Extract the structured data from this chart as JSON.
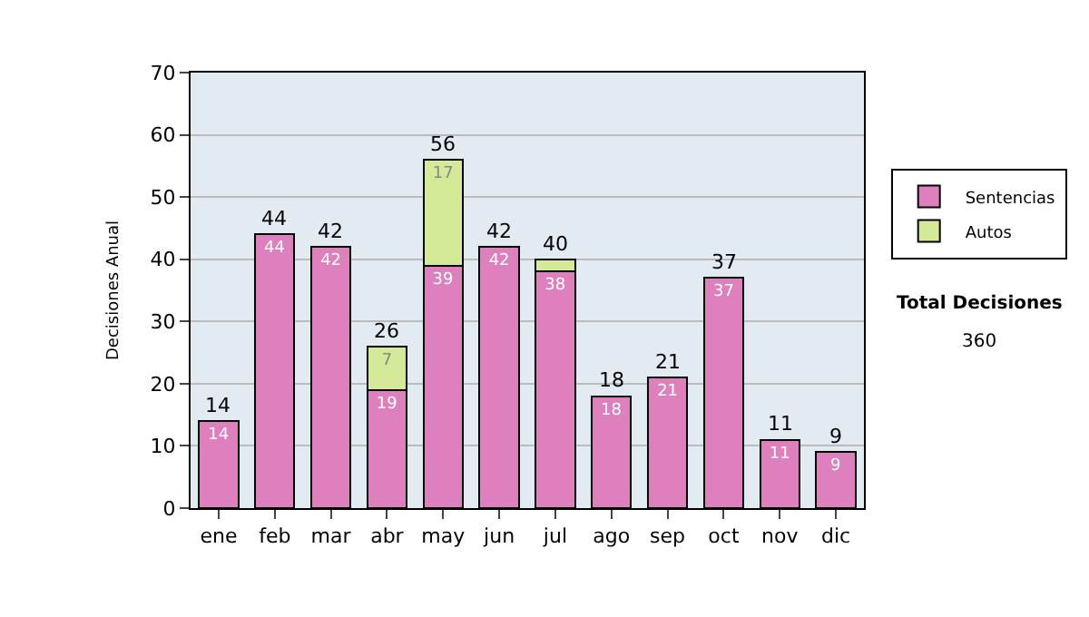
{
  "chart_data": {
    "type": "bar",
    "stacked": true,
    "ylabel": "Decisiones Anual",
    "categories": [
      "ene",
      "feb",
      "mar",
      "abr",
      "may",
      "jun",
      "jul",
      "ago",
      "sep",
      "oct",
      "nov",
      "dic"
    ],
    "series": [
      {
        "name": "Sentencias",
        "color": "#dd80bd",
        "values": [
          14,
          44,
          42,
          19,
          39,
          42,
          38,
          18,
          21,
          37,
          11,
          9
        ],
        "value_labels": [
          "14",
          "44",
          "42",
          "19",
          "39",
          "42",
          "38",
          "18",
          "21",
          "37",
          "11",
          "9"
        ]
      },
      {
        "name": "Autos",
        "color": "#d4ea98",
        "values": [
          null,
          null,
          null,
          7,
          17,
          null,
          2,
          null,
          null,
          null,
          null,
          null
        ],
        "value_labels": [
          null,
          null,
          null,
          "7",
          "17",
          null,
          null,
          null,
          null,
          null,
          null,
          null
        ]
      }
    ],
    "totals": [
      "14",
      "44",
      "42",
      "26",
      "56",
      "42",
      "40",
      "18",
      "21",
      "37",
      "11",
      "9"
    ],
    "ylim": [
      0,
      70
    ],
    "yticks": [
      0,
      10,
      20,
      30,
      40,
      50,
      60,
      70
    ],
    "grid": "y",
    "legend": "right",
    "annotations": [
      "Total Decisiones",
      "360"
    ]
  }
}
